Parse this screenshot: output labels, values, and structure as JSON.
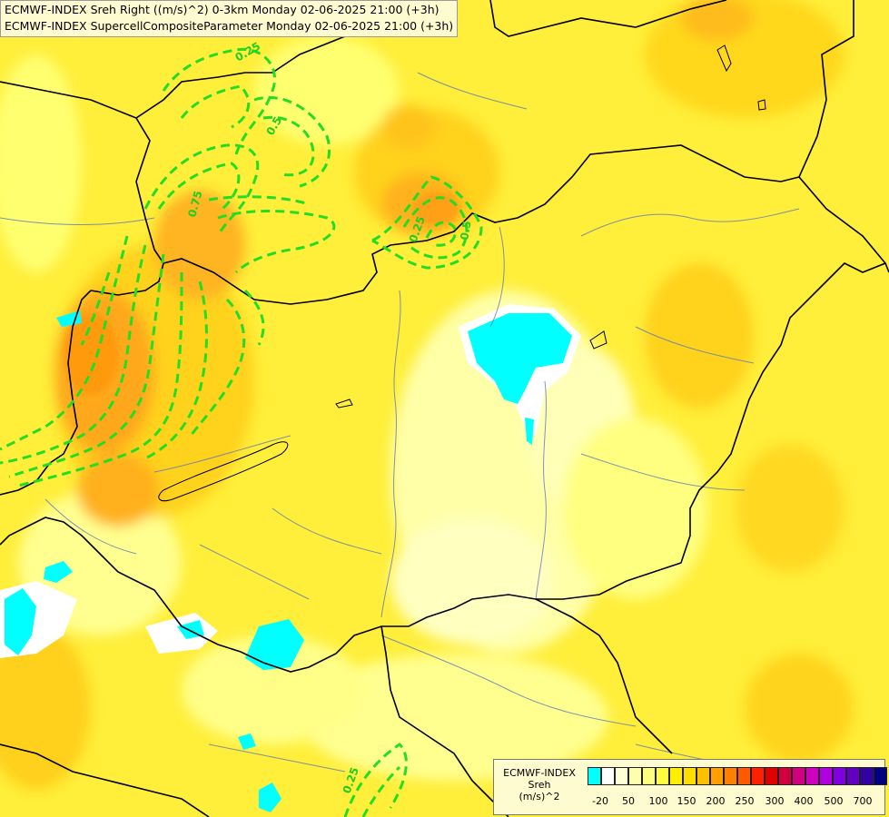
{
  "header": {
    "line1": "ECMWF-INDEX Sreh Right ((m/s)^2) 0-3km Monday 02-06-2025 21:00 (+3h)",
    "line2": "ECMWF-INDEX SupercellCompositeParameter Monday 02-06-2025 21:00 (+3h)"
  },
  "contour_labels": [
    "0.25",
    "0.5",
    "0.75",
    "0.25",
    "0.5",
    "0.25"
  ],
  "legend": {
    "title_lines": [
      "ECMWF-INDEX",
      "Sreh",
      "(m/s)^2"
    ],
    "colors": [
      "#00ffff",
      "#ffffff",
      "#ffffd8",
      "#ffffb0",
      "#ffff80",
      "#ffff40",
      "#ffee00",
      "#ffdd00",
      "#ffc000",
      "#ffa000",
      "#ff8000",
      "#ff5a00",
      "#ff2000",
      "#e00000",
      "#d00040",
      "#d00080",
      "#d000c0",
      "#b000e0",
      "#8000e0",
      "#6000c0",
      "#3000a0",
      "#000080"
    ],
    "tick_labels": [
      "-20",
      "50",
      "100",
      "150",
      "200",
      "250",
      "300",
      "400",
      "500",
      "700"
    ]
  }
}
